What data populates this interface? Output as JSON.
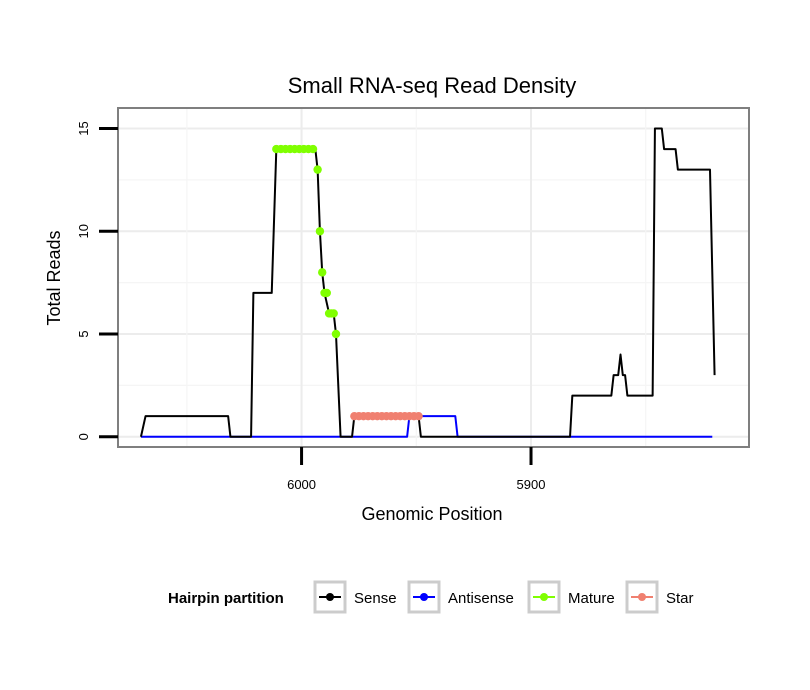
{
  "chart_data": {
    "type": "line",
    "title": "Small RNA-seq Read Density",
    "xlabel": "Genomic Position",
    "ylabel": "Total Reads",
    "x_reversed": true,
    "xlim": [
      6080,
      5805
    ],
    "ylim": [
      -0.5,
      16
    ],
    "x_ticks": [
      6000,
      5900
    ],
    "x_tick_labels": [
      "6000",
      "5900"
    ],
    "y_ticks": [
      0,
      5,
      10,
      15
    ],
    "y_tick_labels": [
      "0",
      "5",
      "10",
      "15"
    ],
    "grid": true,
    "legend_title": "Hairpin partition",
    "legend_position": "bottom",
    "series": [
      {
        "name": "Sense",
        "color": "#000000",
        "style": "line",
        "points": [
          [
            6070,
            0
          ],
          [
            6068,
            1
          ],
          [
            6032,
            1
          ],
          [
            6031,
            0
          ],
          [
            6022,
            0
          ],
          [
            6021,
            7
          ],
          [
            6013,
            7
          ],
          [
            6011,
            14
          ],
          [
            5994,
            14
          ],
          [
            5993,
            13
          ],
          [
            5992,
            10
          ],
          [
            5991,
            8
          ],
          [
            5990,
            7
          ],
          [
            5988,
            6
          ],
          [
            5986,
            6
          ],
          [
            5985,
            5
          ],
          [
            5983,
            0
          ],
          [
            5978,
            0
          ],
          [
            5977,
            1
          ],
          [
            5949,
            1
          ],
          [
            5948,
            0
          ],
          [
            5883,
            0
          ],
          [
            5882,
            2
          ],
          [
            5865,
            2
          ],
          [
            5864,
            3
          ],
          [
            5862,
            3
          ],
          [
            5861,
            4
          ],
          [
            5860,
            3
          ],
          [
            5859,
            3
          ],
          [
            5858,
            2
          ],
          [
            5847,
            2
          ],
          [
            5846,
            15
          ],
          [
            5843,
            15
          ],
          [
            5842,
            14
          ],
          [
            5837,
            14
          ],
          [
            5836,
            13
          ],
          [
            5822,
            13
          ],
          [
            5820,
            3
          ]
        ]
      },
      {
        "name": "Antisense",
        "color": "#0000ff",
        "style": "line",
        "points": [
          [
            6070,
            0
          ],
          [
            5954,
            0
          ],
          [
            5953,
            1
          ],
          [
            5933,
            1
          ],
          [
            5932,
            0
          ],
          [
            5821,
            0
          ]
        ]
      },
      {
        "name": "Mature",
        "color": "#80ff00",
        "style": "points",
        "points": [
          [
            6011,
            14
          ],
          [
            6009,
            14
          ],
          [
            6007,
            14
          ],
          [
            6005,
            14
          ],
          [
            6003,
            14
          ],
          [
            6001,
            14
          ],
          [
            5999,
            14
          ],
          [
            5997,
            14
          ],
          [
            5995,
            14
          ],
          [
            5993,
            13
          ],
          [
            5992,
            10
          ],
          [
            5991,
            8
          ],
          [
            5990,
            7
          ],
          [
            5989,
            7
          ],
          [
            5988,
            6
          ],
          [
            5987,
            6
          ],
          [
            5986,
            6
          ],
          [
            5985,
            5
          ]
        ]
      },
      {
        "name": "Star",
        "color": "#f08070",
        "style": "points",
        "points": [
          [
            5977,
            1
          ],
          [
            5975,
            1
          ],
          [
            5973,
            1
          ],
          [
            5971,
            1
          ],
          [
            5969,
            1
          ],
          [
            5967,
            1
          ],
          [
            5965,
            1
          ],
          [
            5963,
            1
          ],
          [
            5961,
            1
          ],
          [
            5959,
            1
          ],
          [
            5957,
            1
          ],
          [
            5955,
            1
          ],
          [
            5953,
            1
          ],
          [
            5951,
            1
          ],
          [
            5949,
            1
          ]
        ]
      }
    ]
  }
}
